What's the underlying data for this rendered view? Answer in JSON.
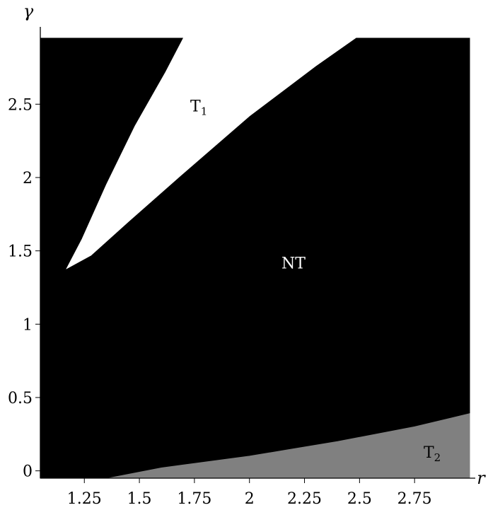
{
  "chart_data": {
    "type": "heatmap",
    "xlabel": "r",
    "ylabel": "γ",
    "xlim": [
      1.05,
      3.0
    ],
    "ylim": [
      -0.05,
      2.95
    ],
    "x_ticks": [
      {
        "value": 1.25,
        "label": "1.25"
      },
      {
        "value": 1.5,
        "label": "1.5"
      },
      {
        "value": 1.75,
        "label": "1.75"
      },
      {
        "value": 2.0,
        "label": "2"
      },
      {
        "value": 2.25,
        "label": "2.25"
      },
      {
        "value": 2.5,
        "label": "2.5"
      },
      {
        "value": 2.75,
        "label": "2.75"
      }
    ],
    "y_ticks": [
      {
        "value": 0,
        "label": "0"
      },
      {
        "value": 0.5,
        "label": "0.5"
      },
      {
        "value": 1.0,
        "label": "1"
      },
      {
        "value": 1.5,
        "label": "1.5"
      },
      {
        "value": 2.0,
        "label": "2"
      },
      {
        "value": 2.5,
        "label": "2.5"
      }
    ],
    "regions": [
      {
        "id": "NT",
        "label": "NT",
        "label_sub": "",
        "color": "#000000",
        "label_color": "#ffffff",
        "label_at": [
          2.2,
          1.38
        ],
        "boundary": [
          [
            1.05,
            -0.05
          ],
          [
            3.0,
            -0.05
          ],
          [
            3.0,
            2.95
          ],
          [
            1.05,
            2.95
          ]
        ]
      },
      {
        "id": "T1",
        "label": "T",
        "label_sub": "1",
        "color": "#ffffff",
        "label_color": "#000000",
        "label_at": [
          1.77,
          2.45
        ],
        "boundary": [
          [
            1.17,
            1.38
          ],
          [
            1.24,
            1.58
          ],
          [
            1.35,
            1.95
          ],
          [
            1.48,
            2.35
          ],
          [
            1.62,
            2.72
          ],
          [
            1.7,
            2.95
          ],
          [
            2.48,
            2.95
          ],
          [
            2.3,
            2.76
          ],
          [
            2.0,
            2.42
          ],
          [
            1.7,
            2.03
          ],
          [
            1.45,
            1.7
          ],
          [
            1.28,
            1.47
          ],
          [
            1.17,
            1.38
          ]
        ]
      },
      {
        "id": "T2",
        "label": "T",
        "label_sub": "2",
        "color": "#808080",
        "label_color": "#000000",
        "label_at": [
          2.83,
          0.09
        ],
        "boundary": [
          [
            1.36,
            -0.05
          ],
          [
            1.6,
            0.02
          ],
          [
            2.0,
            0.1
          ],
          [
            2.4,
            0.2
          ],
          [
            2.75,
            0.3
          ],
          [
            3.0,
            0.39
          ],
          [
            3.0,
            -0.05
          ]
        ]
      }
    ]
  }
}
